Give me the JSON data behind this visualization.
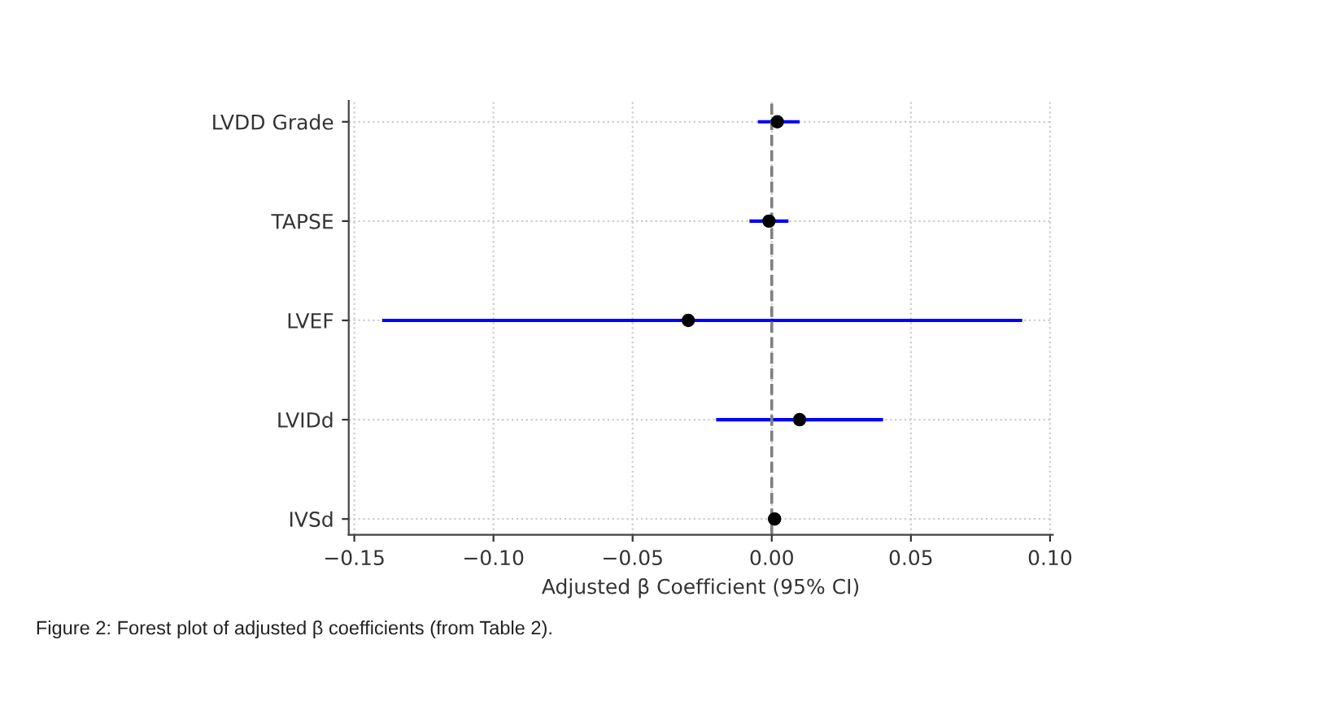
{
  "chart_data": {
    "type": "scatter",
    "orientation": "horizontal",
    "categories": [
      "LVDD Grade",
      "TAPSE",
      "LVEF",
      "LVIDd",
      "IVSd"
    ],
    "color": "#000000",
    "values": [
      0.002,
      -0.001,
      -0.03,
      0.01,
      0.001
    ],
    "errors": [
      [
        -0.005,
        0.01
      ],
      [
        -0.008,
        0.006
      ],
      [
        -0.14,
        0.09
      ],
      [
        -0.02,
        0.04
      ],
      null
    ],
    "xlabel": "Adjusted β Coefficient (95% CI)",
    "xlim": [
      -0.152,
      0.101
    ],
    "xticks": [
      {
        "value": -0.15,
        "label": "−0.15"
      },
      {
        "value": -0.1,
        "label": "−0.10"
      },
      {
        "value": -0.05,
        "label": "−0.05"
      },
      {
        "value": 0,
        "label": "0.00"
      },
      {
        "value": 0.05,
        "label": "0.05"
      },
      {
        "value": 0.1,
        "label": "0.10"
      }
    ],
    "ref_lines": [
      {
        "axis": "x",
        "value": 0,
        "color": "#808080",
        "line_style": "dashed"
      }
    ],
    "grid": true,
    "marker": "circle",
    "annotations": [
      "Figure 2: Forest plot of adjusted β coefficients (from Table 2)."
    ]
  }
}
